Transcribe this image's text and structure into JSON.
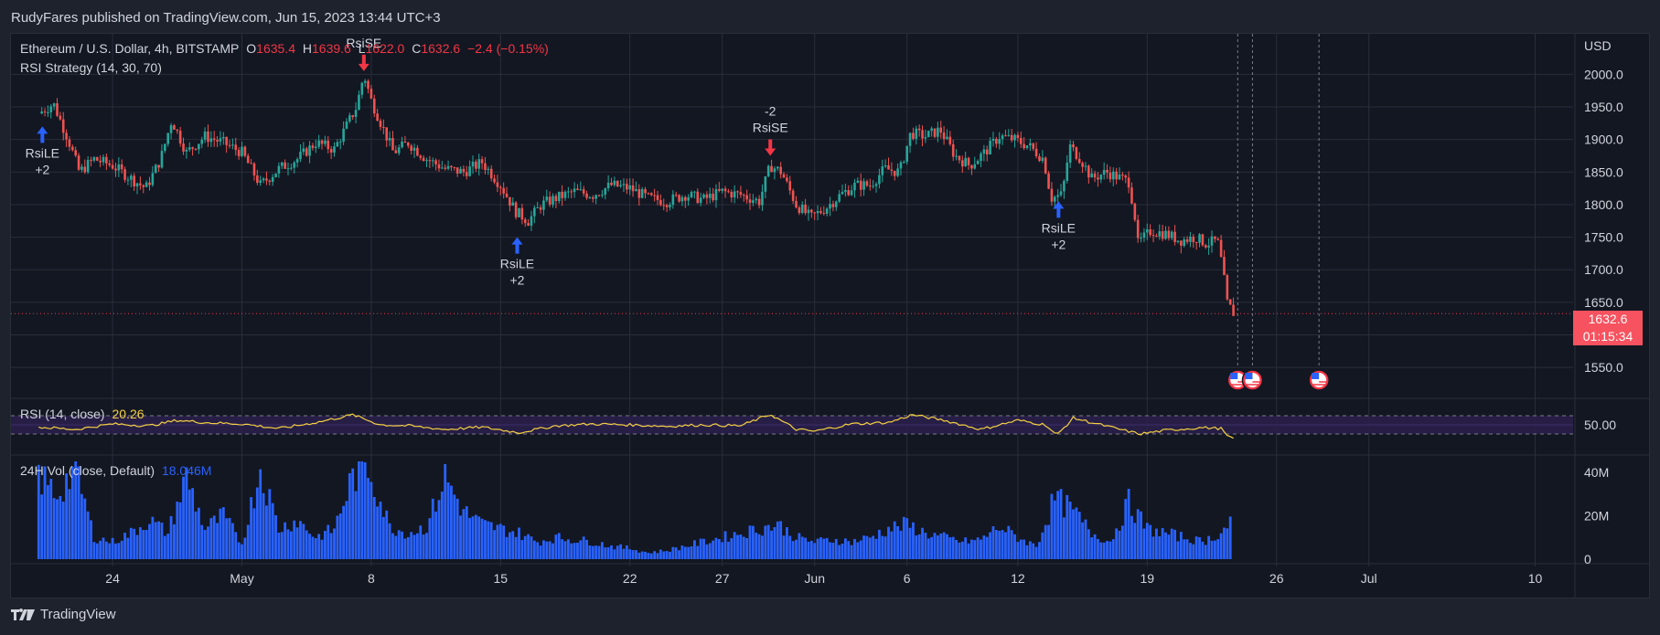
{
  "header": {
    "publish_line": "RudyFares published on TradingView.com, Jun 15, 2023 13:44 UTC+3"
  },
  "footer": {
    "brand": "TradingView"
  },
  "legend": {
    "symbol": "Ethereum / U.S. Dollar, 4h, BITSTAMP",
    "o_label": "O",
    "o_value": "1635.4",
    "h_label": "H",
    "h_value": "1639.6",
    "l_label": "L",
    "l_value": "1622.0",
    "c_label": "C",
    "c_value": "1632.6",
    "change": "−2.4 (−0.15%)",
    "strategy": "RSI Strategy (14, 30, 70)",
    "rsi_label": "RSI (14, close)",
    "rsi_value": "20.26",
    "vol_label": "24H Vol (close, Default)",
    "vol_value": "18.046M"
  },
  "price_tag": {
    "price": "1632.6",
    "countdown": "01:15:34"
  },
  "colors": {
    "up": "#26a69a",
    "down": "#ef5350",
    "rsi_line": "#f5d142",
    "volume": "#2962ff",
    "buy_arrow": "#2962ff",
    "sell_arrow": "#f23645",
    "rsi_band": "#2a1f4a"
  },
  "chart_data": [
    {
      "type": "candlestick",
      "title": "Ethereum / U.S. Dollar, 4h, BITSTAMP",
      "currency": "USD",
      "y_ticks": [
        "2000.0",
        "1950.0",
        "1900.0",
        "1850.0",
        "1800.0",
        "1750.0",
        "1700.0",
        "1650.0",
        "1550.0"
      ],
      "ylim": [
        1525,
        2030
      ],
      "x_ticks": [
        "24",
        "May",
        "8",
        "15",
        "22",
        "27",
        "Jun",
        "6",
        "12",
        "19",
        "26",
        "Jul",
        "10"
      ],
      "x_tick_days": [
        24,
        31,
        38,
        45,
        52,
        57,
        62,
        67,
        73,
        80,
        87,
        92,
        101
      ],
      "day_origin": "Apr 1, 2023",
      "last_price": 1632.6,
      "close_path": [
        {
          "day": 20.0,
          "close": 1940
        },
        {
          "day": 20.8,
          "close": 1955
        },
        {
          "day": 21.6,
          "close": 1900
        },
        {
          "day": 22.2,
          "close": 1850
        },
        {
          "day": 23.0,
          "close": 1870
        },
        {
          "day": 24.0,
          "close": 1860
        },
        {
          "day": 25.0,
          "close": 1840
        },
        {
          "day": 25.8,
          "close": 1825
        },
        {
          "day": 26.6,
          "close": 1870
        },
        {
          "day": 27.2,
          "close": 1930
        },
        {
          "day": 28.0,
          "close": 1880
        },
        {
          "day": 29.0,
          "close": 1905
        },
        {
          "day": 30.0,
          "close": 1895
        },
        {
          "day": 31.0,
          "close": 1880
        },
        {
          "day": 32.0,
          "close": 1830
        },
        {
          "day": 33.0,
          "close": 1855
        },
        {
          "day": 34.0,
          "close": 1870
        },
        {
          "day": 35.0,
          "close": 1895
        },
        {
          "day": 36.0,
          "close": 1885
        },
        {
          "day": 37.2,
          "close": 1950
        },
        {
          "day": 37.6,
          "close": 2000
        },
        {
          "day": 38.0,
          "close": 1960
        },
        {
          "day": 38.6,
          "close": 1920
        },
        {
          "day": 39.2,
          "close": 1880
        },
        {
          "day": 40.0,
          "close": 1895
        },
        {
          "day": 41.0,
          "close": 1870
        },
        {
          "day": 42.0,
          "close": 1855
        },
        {
          "day": 43.0,
          "close": 1850
        },
        {
          "day": 44.0,
          "close": 1865
        },
        {
          "day": 45.0,
          "close": 1830
        },
        {
          "day": 45.8,
          "close": 1790
        },
        {
          "day": 46.5,
          "close": 1775
        },
        {
          "day": 47.2,
          "close": 1800
        },
        {
          "day": 48.0,
          "close": 1810
        },
        {
          "day": 49.0,
          "close": 1820
        },
        {
          "day": 50.0,
          "close": 1815
        },
        {
          "day": 51.0,
          "close": 1830
        },
        {
          "day": 52.0,
          "close": 1825
        },
        {
          "day": 53.0,
          "close": 1810
        },
        {
          "day": 54.0,
          "close": 1805
        },
        {
          "day": 55.0,
          "close": 1815
        },
        {
          "day": 56.0,
          "close": 1808
        },
        {
          "day": 57.0,
          "close": 1820
        },
        {
          "day": 58.0,
          "close": 1815
        },
        {
          "day": 59.0,
          "close": 1805
        },
        {
          "day": 59.6,
          "close": 1860
        },
        {
          "day": 60.2,
          "close": 1850
        },
        {
          "day": 61.0,
          "close": 1800
        },
        {
          "day": 61.8,
          "close": 1780
        },
        {
          "day": 62.6,
          "close": 1795
        },
        {
          "day": 63.4,
          "close": 1815
        },
        {
          "day": 64.2,
          "close": 1830
        },
        {
          "day": 65.0,
          "close": 1830
        },
        {
          "day": 65.8,
          "close": 1855
        },
        {
          "day": 66.6,
          "close": 1850
        },
        {
          "day": 67.2,
          "close": 1910
        },
        {
          "day": 68.0,
          "close": 1905
        },
        {
          "day": 68.8,
          "close": 1915
        },
        {
          "day": 69.6,
          "close": 1875
        },
        {
          "day": 70.4,
          "close": 1860
        },
        {
          "day": 71.2,
          "close": 1880
        },
        {
          "day": 72.0,
          "close": 1905
        },
        {
          "day": 72.8,
          "close": 1900
        },
        {
          "day": 73.6,
          "close": 1890
        },
        {
          "day": 74.4,
          "close": 1870
        },
        {
          "day": 74.8,
          "close": 1810
        },
        {
          "day": 75.4,
          "close": 1815
        },
        {
          "day": 75.8,
          "close": 1890
        },
        {
          "day": 76.4,
          "close": 1870
        },
        {
          "day": 77.0,
          "close": 1840
        },
        {
          "day": 77.8,
          "close": 1850
        },
        {
          "day": 78.6,
          "close": 1840
        },
        {
          "day": 79.0,
          "close": 1835
        },
        {
          "day": 79.3,
          "close": 1790
        },
        {
          "day": 79.5,
          "close": 1740
        },
        {
          "day": 80.2,
          "close": 1760
        },
        {
          "day": 81.0,
          "close": 1755
        },
        {
          "day": 81.8,
          "close": 1745
        },
        {
          "day": 82.6,
          "close": 1750
        },
        {
          "day": 83.2,
          "close": 1740
        },
        {
          "day": 83.8,
          "close": 1745
        },
        {
          "day": 84.1,
          "close": 1700
        },
        {
          "day": 84.3,
          "close": 1650
        },
        {
          "day": 84.7,
          "close": 1632.6
        }
      ],
      "series": [
        {
          "name": "RSI Strategy (14, 30, 70)",
          "signals": [
            {
              "label": "RsiLE",
              "qty": "+2",
              "side": "buy",
              "day": 20.2,
              "price": 1920
            },
            {
              "label": "RsiSE",
              "qty": "",
              "side": "sell",
              "day": 37.6,
              "price": 2005
            },
            {
              "label": "RsiLE",
              "qty": "+2",
              "side": "buy",
              "day": 45.9,
              "price": 1750
            },
            {
              "label": "RsiSE",
              "qty": "-2",
              "side": "sell",
              "day": 59.6,
              "price": 1875
            },
            {
              "label": "RsiLE",
              "qty": "+2",
              "side": "buy",
              "day": 75.2,
              "price": 1805
            }
          ]
        }
      ],
      "event_markers": [
        {
          "day": 84.9
        },
        {
          "day": 85.7
        },
        {
          "day": 89.3
        }
      ]
    },
    {
      "type": "line",
      "title": "RSI (14, close)",
      "y_ticks": [
        "50.00"
      ],
      "ylim": [
        0,
        100
      ],
      "bands": [
        30,
        70
      ],
      "last_value": 20.26,
      "values_by_day": [
        {
          "day": 20,
          "rsi": 45
        },
        {
          "day": 22,
          "rsi": 40
        },
        {
          "day": 24,
          "rsi": 52
        },
        {
          "day": 26,
          "rsi": 48
        },
        {
          "day": 27.5,
          "rsi": 60
        },
        {
          "day": 29,
          "rsi": 55
        },
        {
          "day": 31,
          "rsi": 52
        },
        {
          "day": 33,
          "rsi": 42
        },
        {
          "day": 35,
          "rsi": 55
        },
        {
          "day": 37,
          "rsi": 72
        },
        {
          "day": 38.5,
          "rsi": 50
        },
        {
          "day": 40,
          "rsi": 48
        },
        {
          "day": 42,
          "rsi": 40
        },
        {
          "day": 44,
          "rsi": 45
        },
        {
          "day": 46,
          "rsi": 33
        },
        {
          "day": 48,
          "rsi": 48
        },
        {
          "day": 50,
          "rsi": 52
        },
        {
          "day": 52,
          "rsi": 50
        },
        {
          "day": 54,
          "rsi": 47
        },
        {
          "day": 56,
          "rsi": 50
        },
        {
          "day": 58,
          "rsi": 48
        },
        {
          "day": 59.6,
          "rsi": 73
        },
        {
          "day": 61,
          "rsi": 40
        },
        {
          "day": 62,
          "rsi": 36
        },
        {
          "day": 64,
          "rsi": 52
        },
        {
          "day": 66,
          "rsi": 55
        },
        {
          "day": 67.3,
          "rsi": 72
        },
        {
          "day": 69,
          "rsi": 60
        },
        {
          "day": 71,
          "rsi": 40
        },
        {
          "day": 73,
          "rsi": 60
        },
        {
          "day": 74.5,
          "rsi": 50
        },
        {
          "day": 75.1,
          "rsi": 27
        },
        {
          "day": 76,
          "rsi": 65
        },
        {
          "day": 78,
          "rsi": 45
        },
        {
          "day": 79.6,
          "rsi": 30
        },
        {
          "day": 81,
          "rsi": 38
        },
        {
          "day": 83,
          "rsi": 44
        },
        {
          "day": 84,
          "rsi": 42
        },
        {
          "day": 84.4,
          "rsi": 22
        },
        {
          "day": 84.7,
          "rsi": 20.26
        }
      ]
    },
    {
      "type": "bar",
      "title": "24H Vol (close, Default)",
      "y_ticks": [
        "40M",
        "20M",
        "0"
      ],
      "ylim": [
        0,
        45
      ],
      "unit": "M",
      "last_value": 18.046,
      "values_by_day": [
        {
          "day": 20,
          "vol": 38
        },
        {
          "day": 21,
          "vol": 30
        },
        {
          "day": 22,
          "vol": 42
        },
        {
          "day": 23,
          "vol": 10
        },
        {
          "day": 24,
          "vol": 8
        },
        {
          "day": 25,
          "vol": 12
        },
        {
          "day": 26,
          "vol": 18
        },
        {
          "day": 27,
          "vol": 12
        },
        {
          "day": 28,
          "vol": 38
        },
        {
          "day": 29,
          "vol": 14
        },
        {
          "day": 30,
          "vol": 20
        },
        {
          "day": 31,
          "vol": 7
        },
        {
          "day": 32,
          "vol": 42
        },
        {
          "day": 33,
          "vol": 14
        },
        {
          "day": 34,
          "vol": 18
        },
        {
          "day": 35,
          "vol": 10
        },
        {
          "day": 36,
          "vol": 14
        },
        {
          "day": 37,
          "vol": 38
        },
        {
          "day": 37.8,
          "vol": 44
        },
        {
          "day": 39,
          "vol": 15
        },
        {
          "day": 40,
          "vol": 12
        },
        {
          "day": 41,
          "vol": 15
        },
        {
          "day": 42,
          "vol": 38
        },
        {
          "day": 43,
          "vol": 22
        },
        {
          "day": 44,
          "vol": 16
        },
        {
          "day": 45,
          "vol": 14
        },
        {
          "day": 46,
          "vol": 12
        },
        {
          "day": 47,
          "vol": 8
        },
        {
          "day": 48,
          "vol": 10
        },
        {
          "day": 49,
          "vol": 9
        },
        {
          "day": 50,
          "vol": 8
        },
        {
          "day": 51,
          "vol": 6
        },
        {
          "day": 52,
          "vol": 5
        },
        {
          "day": 53,
          "vol": 3
        },
        {
          "day": 54,
          "vol": 4
        },
        {
          "day": 55,
          "vol": 6
        },
        {
          "day": 56,
          "vol": 8
        },
        {
          "day": 57,
          "vol": 10
        },
        {
          "day": 58,
          "vol": 12
        },
        {
          "day": 59,
          "vol": 14
        },
        {
          "day": 60,
          "vol": 16
        },
        {
          "day": 61,
          "vol": 10
        },
        {
          "day": 62,
          "vol": 8
        },
        {
          "day": 63,
          "vol": 9
        },
        {
          "day": 64,
          "vol": 8
        },
        {
          "day": 65,
          "vol": 10
        },
        {
          "day": 66,
          "vol": 14
        },
        {
          "day": 67,
          "vol": 16
        },
        {
          "day": 68,
          "vol": 12
        },
        {
          "day": 69,
          "vol": 10
        },
        {
          "day": 70,
          "vol": 8
        },
        {
          "day": 71,
          "vol": 9
        },
        {
          "day": 72,
          "vol": 15
        },
        {
          "day": 73,
          "vol": 10
        },
        {
          "day": 74,
          "vol": 6
        },
        {
          "day": 75,
          "vol": 28
        },
        {
          "day": 76,
          "vol": 22
        },
        {
          "day": 77,
          "vol": 12
        },
        {
          "day": 78,
          "vol": 8
        },
        {
          "day": 79,
          "vol": 26
        },
        {
          "day": 80,
          "vol": 14
        },
        {
          "day": 81,
          "vol": 12
        },
        {
          "day": 82,
          "vol": 10
        },
        {
          "day": 83,
          "vol": 8
        },
        {
          "day": 84,
          "vol": 12
        },
        {
          "day": 84.6,
          "vol": 18.046
        }
      ]
    }
  ]
}
